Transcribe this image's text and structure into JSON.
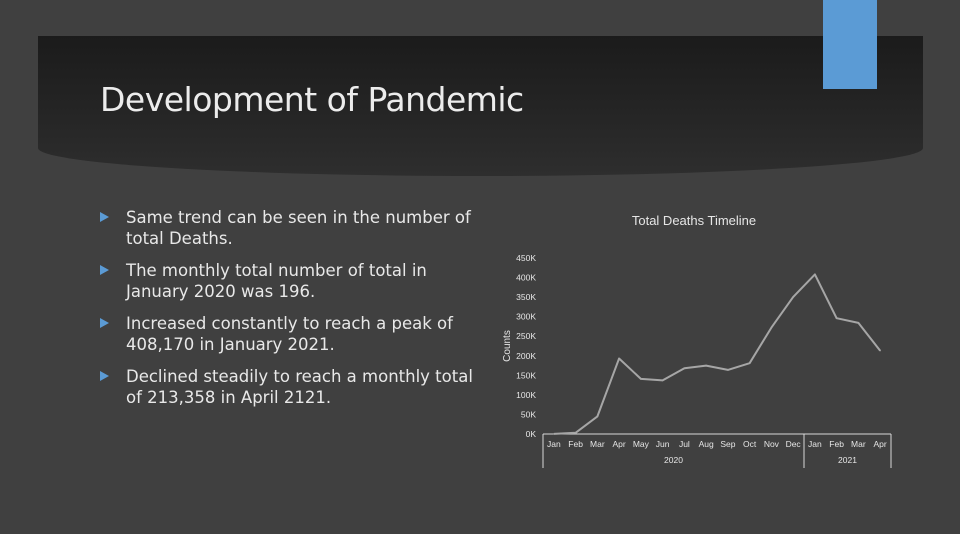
{
  "slide": {
    "title": "Development of Pandemic",
    "bullets": [
      "Same trend can be seen in the number of total Deaths.",
      "The monthly total number of total in January 2020 was 196.",
      "Increased constantly to reach a peak of 408,170 in January 2021.",
      "Declined steadily to reach a monthly total of 213,358 in April 2121."
    ]
  },
  "colors": {
    "accent": "#5b9bd5",
    "background": "#404040",
    "line": "#a6a6a6"
  },
  "chart_data": {
    "type": "line",
    "title": "Total Deaths Timeline",
    "ylabel": "Counts",
    "xlabel": "",
    "ylim": [
      0,
      450000
    ],
    "yticks": [
      0,
      50000,
      100000,
      150000,
      200000,
      250000,
      300000,
      350000,
      400000,
      450000
    ],
    "ytick_labels": [
      "0K",
      "50K",
      "100K",
      "150K",
      "200K",
      "250K",
      "300K",
      "350K",
      "400K",
      "450K"
    ],
    "categories": [
      "Jan",
      "Feb",
      "Mar",
      "Apr",
      "May",
      "Jun",
      "Jul",
      "Aug",
      "Sep",
      "Oct",
      "Nov",
      "Dec",
      "Jan",
      "Feb",
      "Mar",
      "Apr"
    ],
    "groups": [
      {
        "label": "2020",
        "start": 0,
        "end": 11
      },
      {
        "label": "2021",
        "start": 12,
        "end": 15
      }
    ],
    "series": [
      {
        "values": [
          196,
          3000,
          45000,
          193000,
          141000,
          137000,
          168000,
          175000,
          164000,
          181000,
          272000,
          350000,
          408170,
          296000,
          284000,
          213358
        ]
      }
    ],
    "grid": false,
    "legend": "none"
  }
}
